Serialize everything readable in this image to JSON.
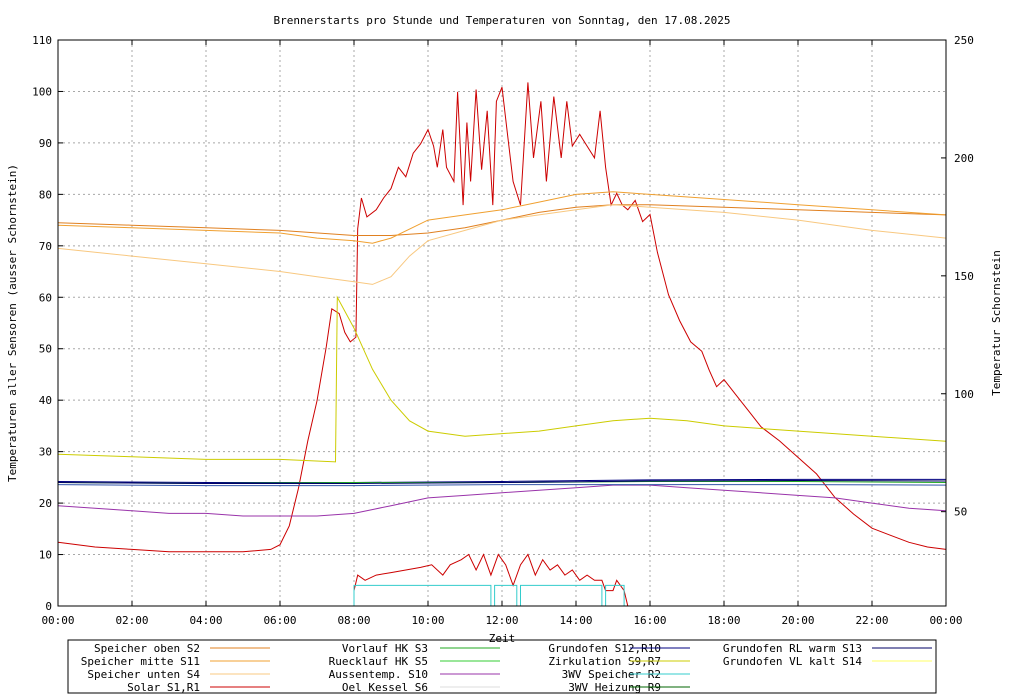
{
  "chart_data": {
    "type": "line",
    "title": "Brennerstarts pro Stunde und Temperaturen von Sonntag, den 17.08.2025",
    "xlabel": "Zeit",
    "ylabel": "Temperaturen aller Sensoren (ausser Schornstein)",
    "y2label": "Temperatur Schornstein",
    "y2label_color": "#ff55dd",
    "x_unit": "hours",
    "xlim": [
      0,
      24
    ],
    "ylim": [
      0,
      110
    ],
    "y2lim": [
      10,
      250
    ],
    "grid": true,
    "x_ticks": [
      "00:00",
      "02:00",
      "04:00",
      "06:00",
      "08:00",
      "10:00",
      "12:00",
      "14:00",
      "16:00",
      "18:00",
      "20:00",
      "22:00",
      "00:00"
    ],
    "y_ticks": [
      "0",
      "10",
      "20",
      "30",
      "40",
      "50",
      "60",
      "70",
      "80",
      "90",
      "100",
      "110"
    ],
    "y2_ticks": [
      "50",
      "100",
      "150",
      "200",
      "250"
    ],
    "legend_position": "bottom",
    "legend": [
      {
        "label": "Speicher oben  S2",
        "color": "#e08020",
        "row": 0,
        "col": 0
      },
      {
        "label": "Speicher mitte S11",
        "color": "#f0a030",
        "row": 1,
        "col": 0
      },
      {
        "label": "Speicher unten S4",
        "color": "#f8c880",
        "row": 2,
        "col": 0
      },
      {
        "label": "Solar        S1,R1",
        "color": "#cc0000",
        "row": 3,
        "col": 0
      },
      {
        "label": "Vorlauf HK     S3",
        "color": "#22aa22",
        "row": 0,
        "col": 1
      },
      {
        "label": "Ruecklauf HK   S5",
        "color": "#33cc33",
        "row": 1,
        "col": 1
      },
      {
        "label": "Aussentemp.   S10",
        "color": "#9933aa",
        "row": 2,
        "col": 1
      },
      {
        "label": "Oel Kessel     S6",
        "color": "#dddddd",
        "row": 3,
        "col": 1
      },
      {
        "label": "Grundofen    S12,R10",
        "color": "#000080",
        "row": 0,
        "col": 2
      },
      {
        "label": "Zirkulation    S9,R7",
        "color": "#cccc00",
        "row": 1,
        "col": 2
      },
      {
        "label": "3WV Speicher      R2",
        "color": "#33cccc",
        "row": 2,
        "col": 2
      },
      {
        "label": "3WV Heizung   R9",
        "color": "#006600",
        "row": 3,
        "col": 2
      },
      {
        "label": "Grundofen RL warm   S13",
        "color": "#000066",
        "row": 0,
        "col": 3
      },
      {
        "label": "Grundofen VL kalt   S14",
        "color": "#ffff66",
        "row": 1,
        "col": 3
      }
    ],
    "series": [
      {
        "color": "#cc0000",
        "axis": "y2",
        "points": [
          [
            0,
            37
          ],
          [
            1,
            35
          ],
          [
            2,
            34
          ],
          [
            3,
            33
          ],
          [
            4,
            33
          ],
          [
            5,
            33
          ],
          [
            5.75,
            34
          ],
          [
            6,
            36
          ],
          [
            6.25,
            44
          ],
          [
            6.5,
            60
          ],
          [
            6.75,
            80
          ],
          [
            7,
            97
          ],
          [
            7.25,
            120
          ],
          [
            7.4,
            136
          ],
          [
            7.6,
            134
          ],
          [
            7.75,
            126
          ],
          [
            7.9,
            122
          ],
          [
            8.05,
            124
          ],
          [
            8.1,
            170
          ],
          [
            8.2,
            183
          ],
          [
            8.35,
            175
          ],
          [
            8.6,
            178
          ],
          [
            8.8,
            183
          ],
          [
            9,
            187
          ],
          [
            9.2,
            196
          ],
          [
            9.4,
            192
          ],
          [
            9.6,
            202
          ],
          [
            9.8,
            206
          ],
          [
            10,
            212
          ],
          [
            10.15,
            205
          ],
          [
            10.25,
            196
          ],
          [
            10.4,
            212
          ],
          [
            10.5,
            196
          ],
          [
            10.7,
            190
          ],
          [
            10.8,
            228
          ],
          [
            10.95,
            180
          ],
          [
            11.05,
            215
          ],
          [
            11.15,
            190
          ],
          [
            11.3,
            229
          ],
          [
            11.45,
            195
          ],
          [
            11.6,
            220
          ],
          [
            11.75,
            180
          ],
          [
            11.85,
            224
          ],
          [
            12,
            230
          ],
          [
            12.15,
            210
          ],
          [
            12.3,
            190
          ],
          [
            12.5,
            180
          ],
          [
            12.7,
            232
          ],
          [
            12.85,
            200
          ],
          [
            13.05,
            224
          ],
          [
            13.2,
            190
          ],
          [
            13.4,
            226
          ],
          [
            13.6,
            200
          ],
          [
            13.75,
            224
          ],
          [
            13.9,
            205
          ],
          [
            14.1,
            210
          ],
          [
            14.3,
            205
          ],
          [
            14.5,
            200
          ],
          [
            14.65,
            220
          ],
          [
            14.8,
            196
          ],
          [
            14.95,
            180
          ],
          [
            15.1,
            185
          ],
          [
            15.25,
            180
          ],
          [
            15.4,
            178
          ],
          [
            15.6,
            182
          ],
          [
            15.8,
            173
          ],
          [
            16,
            176
          ],
          [
            16.2,
            160
          ],
          [
            16.5,
            142
          ],
          [
            16.8,
            131
          ],
          [
            17.1,
            122
          ],
          [
            17.4,
            118
          ],
          [
            17.6,
            110
          ],
          [
            17.8,
            103
          ],
          [
            18,
            106
          ],
          [
            18.3,
            100
          ],
          [
            18.7,
            92
          ],
          [
            19,
            86
          ],
          [
            19.5,
            80
          ],
          [
            20,
            73
          ],
          [
            20.5,
            66
          ],
          [
            21,
            56
          ],
          [
            21.5,
            49
          ],
          [
            22,
            43
          ],
          [
            22.5,
            40
          ],
          [
            23,
            37
          ],
          [
            23.5,
            35
          ],
          [
            24,
            34
          ]
        ]
      },
      {
        "color": "#cc0000",
        "axis": "y",
        "points": [
          [
            8,
            3
          ],
          [
            8.1,
            6
          ],
          [
            8.3,
            5
          ],
          [
            8.6,
            6
          ],
          [
            9,
            6.5
          ],
          [
            9.4,
            7
          ],
          [
            9.8,
            7.5
          ],
          [
            10.1,
            8
          ],
          [
            10.4,
            6
          ],
          [
            10.6,
            8
          ],
          [
            10.9,
            9
          ],
          [
            11.1,
            10
          ],
          [
            11.3,
            7
          ],
          [
            11.5,
            10
          ],
          [
            11.7,
            6
          ],
          [
            11.9,
            10
          ],
          [
            12.1,
            8
          ],
          [
            12.3,
            4
          ],
          [
            12.5,
            8
          ],
          [
            12.7,
            10
          ],
          [
            12.9,
            6
          ],
          [
            13.1,
            9
          ],
          [
            13.3,
            7
          ],
          [
            13.5,
            8
          ],
          [
            13.7,
            6
          ],
          [
            13.9,
            7
          ],
          [
            14.1,
            5
          ],
          [
            14.3,
            6
          ],
          [
            14.5,
            5
          ],
          [
            14.7,
            5
          ],
          [
            14.8,
            3
          ],
          [
            15,
            3
          ],
          [
            15.1,
            5
          ],
          [
            15.3,
            3
          ],
          [
            15.4,
            0
          ]
        ]
      },
      {
        "color": "#e08020",
        "axis": "y",
        "points": [
          [
            0,
            74.5
          ],
          [
            2,
            74
          ],
          [
            4,
            73.5
          ],
          [
            6,
            73
          ],
          [
            8,
            72
          ],
          [
            9,
            72
          ],
          [
            10,
            72.5
          ],
          [
            11,
            73.5
          ],
          [
            12,
            75
          ],
          [
            13,
            76.5
          ],
          [
            14,
            77.5
          ],
          [
            15,
            78
          ],
          [
            16,
            78
          ],
          [
            18,
            77.5
          ],
          [
            20,
            77
          ],
          [
            22,
            76.5
          ],
          [
            24,
            76
          ]
        ]
      },
      {
        "color": "#f0a030",
        "axis": "y",
        "points": [
          [
            0,
            74
          ],
          [
            2,
            73.5
          ],
          [
            4,
            73
          ],
          [
            6,
            72.5
          ],
          [
            7,
            71.5
          ],
          [
            8,
            71
          ],
          [
            8.5,
            70.5
          ],
          [
            9,
            71.5
          ],
          [
            10,
            75
          ],
          [
            11,
            76
          ],
          [
            12,
            77
          ],
          [
            13,
            78.5
          ],
          [
            14,
            80
          ],
          [
            15,
            80.5
          ],
          [
            16,
            80
          ],
          [
            18,
            79
          ],
          [
            20,
            78
          ],
          [
            22,
            77
          ],
          [
            24,
            76
          ]
        ]
      },
      {
        "color": "#f8c880",
        "axis": "y",
        "points": [
          [
            0,
            69.5
          ],
          [
            2,
            68
          ],
          [
            4,
            66.5
          ],
          [
            6,
            65
          ],
          [
            7,
            64
          ],
          [
            8,
            63
          ],
          [
            8.5,
            62.5
          ],
          [
            9,
            64
          ],
          [
            9.5,
            68
          ],
          [
            10,
            71
          ],
          [
            11,
            73
          ],
          [
            12,
            75
          ],
          [
            13,
            76
          ],
          [
            14,
            77
          ],
          [
            15,
            78
          ],
          [
            16,
            77.5
          ],
          [
            18,
            76.5
          ],
          [
            20,
            75
          ],
          [
            22,
            73
          ],
          [
            24,
            71.5
          ]
        ]
      },
      {
        "color": "#cccc00",
        "axis": "y",
        "points": [
          [
            0,
            29.5
          ],
          [
            2,
            29
          ],
          [
            4,
            28.5
          ],
          [
            6,
            28.5
          ],
          [
            7.5,
            28
          ],
          [
            7.55,
            60
          ],
          [
            8,
            54
          ],
          [
            8.5,
            46
          ],
          [
            9,
            40
          ],
          [
            9.5,
            36
          ],
          [
            10,
            34
          ],
          [
            11,
            33
          ],
          [
            12,
            33.5
          ],
          [
            13,
            34
          ],
          [
            14,
            35
          ],
          [
            15,
            36
          ],
          [
            16,
            36.5
          ],
          [
            17,
            36
          ],
          [
            18,
            35
          ],
          [
            20,
            34
          ],
          [
            22,
            33
          ],
          [
            24,
            32
          ]
        ]
      },
      {
        "color": "#9933aa",
        "axis": "y",
        "points": [
          [
            0,
            19.5
          ],
          [
            1,
            19
          ],
          [
            2,
            18.5
          ],
          [
            3,
            18
          ],
          [
            4,
            18
          ],
          [
            5,
            17.5
          ],
          [
            6,
            17.5
          ],
          [
            7,
            17.5
          ],
          [
            8,
            18
          ],
          [
            9,
            19.5
          ],
          [
            10,
            21
          ],
          [
            11,
            21.5
          ],
          [
            12,
            22
          ],
          [
            13,
            22.5
          ],
          [
            14,
            23
          ],
          [
            15,
            23.5
          ],
          [
            16,
            23.5
          ],
          [
            17,
            23
          ],
          [
            18,
            22.5
          ],
          [
            19,
            22
          ],
          [
            20,
            21.5
          ],
          [
            21,
            21
          ],
          [
            22,
            20
          ],
          [
            23,
            19
          ],
          [
            24,
            18.5
          ]
        ]
      },
      {
        "color": "#000080",
        "axis": "y",
        "points": [
          [
            0,
            24.2
          ],
          [
            4,
            24
          ],
          [
            8,
            24
          ],
          [
            12,
            24.2
          ],
          [
            16,
            24.5
          ],
          [
            20,
            24.6
          ],
          [
            24,
            24.6
          ]
        ]
      },
      {
        "color": "#22aa22",
        "axis": "y",
        "points": [
          [
            0,
            24
          ],
          [
            4,
            23.8
          ],
          [
            8,
            24
          ],
          [
            12,
            24
          ],
          [
            16,
            24.2
          ],
          [
            20,
            24.2
          ],
          [
            24,
            24
          ]
        ]
      },
      {
        "color": "#3355aa",
        "axis": "y",
        "points": [
          [
            0,
            23.6
          ],
          [
            4,
            23.4
          ],
          [
            8,
            23.4
          ],
          [
            12,
            23.6
          ],
          [
            16,
            23.6
          ],
          [
            20,
            23.6
          ],
          [
            24,
            23.5
          ]
        ]
      },
      {
        "color": "#000066",
        "axis": "y",
        "points": [
          [
            0,
            24
          ],
          [
            4,
            23.8
          ],
          [
            8,
            23.8
          ],
          [
            12,
            24
          ],
          [
            16,
            24.3
          ],
          [
            20,
            24.4
          ],
          [
            24,
            24.3
          ]
        ]
      },
      {
        "color": "#33cccc",
        "axis": "y",
        "points": [
          [
            8,
            0
          ],
          [
            8,
            4
          ],
          [
            11.7,
            4
          ],
          [
            11.7,
            0
          ],
          [
            11.8,
            0
          ],
          [
            11.8,
            4
          ],
          [
            12.4,
            4
          ],
          [
            12.4,
            0
          ],
          [
            12.5,
            0
          ],
          [
            12.5,
            4
          ],
          [
            14.7,
            4
          ],
          [
            14.7,
            0
          ],
          [
            14.8,
            0
          ],
          [
            14.8,
            4
          ],
          [
            15.3,
            4
          ],
          [
            15.3,
            0
          ]
        ]
      }
    ]
  }
}
